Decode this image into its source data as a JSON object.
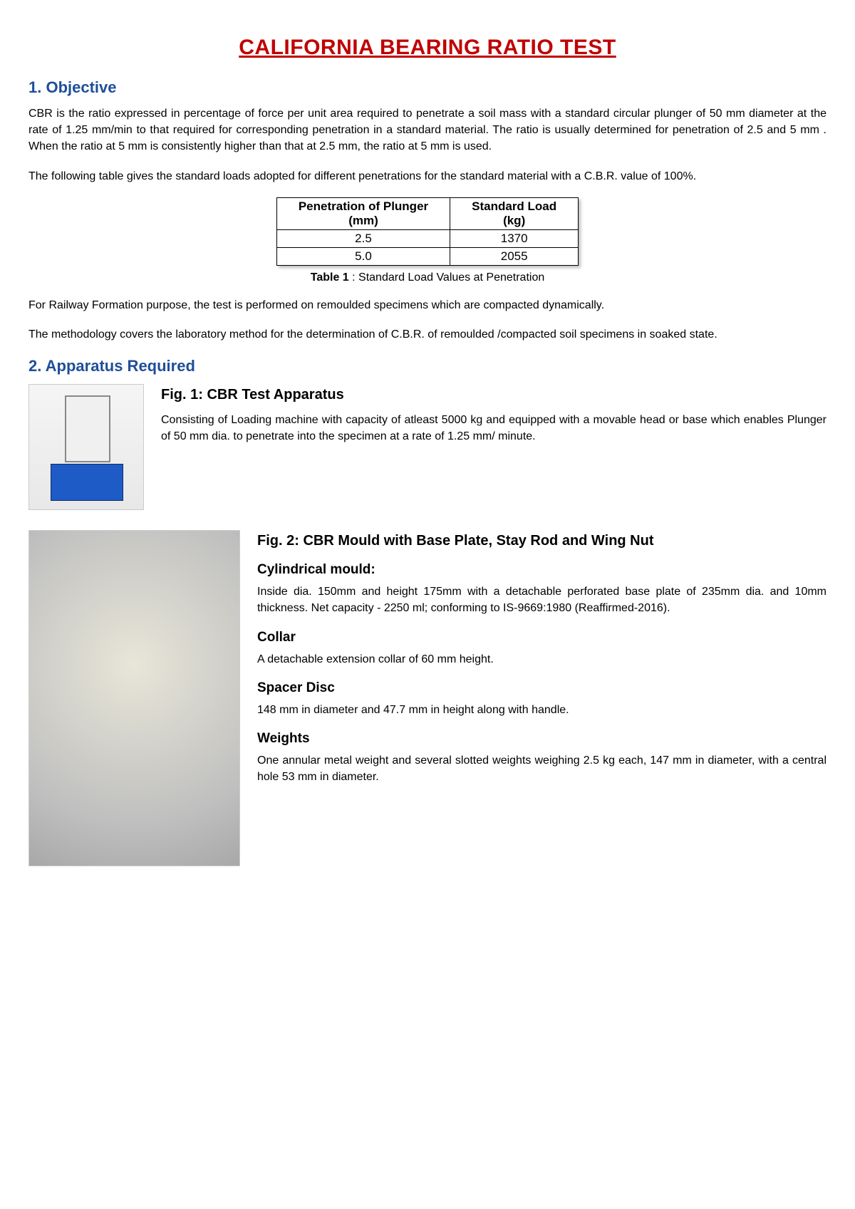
{
  "title": "CALIFORNIA BEARING RATIO TEST",
  "section1": {
    "heading": "1. Objective",
    "p1": "CBR is the ratio expressed in percentage of force per unit area required to penetrate a soil mass with a standard circular plunger of 50 mm diameter at the rate of 1.25 mm/min to that required for corresponding penetration in a standard material. The ratio is usually determined for penetration of 2.5 and 5 mm . When the ratio at 5 mm is consistently higher than that at 2.5 mm, the ratio at 5 mm is used.",
    "p2": "The following table gives the standard loads adopted for different penetrations for the standard material with a C.B.R. value of 100%.",
    "table": {
      "columns": [
        "Penetration of Plunger (mm)",
        "Standard Load (kg)"
      ],
      "col_headers": {
        "c1l1": "Penetration of Plunger",
        "c1l2": "(mm)",
        "c2l1": "Standard Load",
        "c2l2": "(kg)"
      },
      "rows": [
        {
          "penetration": "2.5",
          "load": "1370"
        },
        {
          "penetration": "5.0",
          "load": "2055"
        }
      ],
      "caption_bold": "Table 1",
      "caption_rest": " : Standard Load Values at Penetration"
    },
    "p3": "For Railway Formation purpose, the test is performed on remoulded specimens which are compacted dynamically.",
    "p4": "The methodology covers the laboratory method for the determination of C.B.R. of remoulded /compacted soil specimens in soaked state."
  },
  "section2": {
    "heading": "2. Apparatus Required",
    "fig1": {
      "title": "Fig. 1: CBR Test Apparatus",
      "text": "Consisting of Loading machine with capacity of atleast 5000 kg and equipped with a movable head or base which enables Plunger of 50 mm dia. to penetrate into the specimen at a rate of 1.25 mm/ minute."
    },
    "fig2": {
      "title": "Fig. 2: CBR Mould with Base Plate, Stay Rod and Wing Nut",
      "sub1_h": "Cylindrical mould:",
      "sub1_t": "Inside dia. 150mm and height 175mm with a detachable perforated base plate of 235mm dia. and 10mm thickness. Net capacity - 2250 ml; conforming to IS-9669:1980 (Reaffirmed-2016).",
      "sub2_h": "Collar",
      "sub2_t": "A detachable extension collar of 60 mm height.",
      "sub3_h": "Spacer Disc",
      "sub3_t": "148 mm in diameter and 47.7 mm in height along with handle.",
      "sub4_h": "Weights",
      "sub4_t": "One annular metal weight and several slotted weights weighing 2.5 kg each, 147 mm in diameter, with a central hole 53 mm in diameter."
    }
  },
  "colors": {
    "title_color": "#c00000",
    "heading_color": "#1f4e99",
    "text_color": "#000000",
    "background": "#ffffff",
    "table_border": "#000000"
  },
  "typography": {
    "title_fontsize": 30,
    "heading_fontsize": 22,
    "body_fontsize": 16,
    "fig_title_fontsize": 20,
    "sub_heading_fontsize": 19
  }
}
